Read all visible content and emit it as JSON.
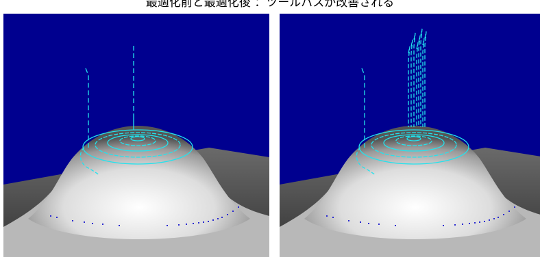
{
  "caption": "最適化前と最適化後 ：ツールパスが改善される",
  "colors": {
    "sky": "#00008f",
    "floor": "#5a5a5a",
    "dome_highlight": "#ffffff",
    "dome_shadow": "#555555",
    "toolpath": "#22e3ee",
    "contact_points": "#2a2ad0",
    "background": "#ffffff"
  },
  "views": [
    {
      "id": "before",
      "variant": "single-plunge"
    },
    {
      "id": "after",
      "variant": "multi-plunge"
    }
  ]
}
